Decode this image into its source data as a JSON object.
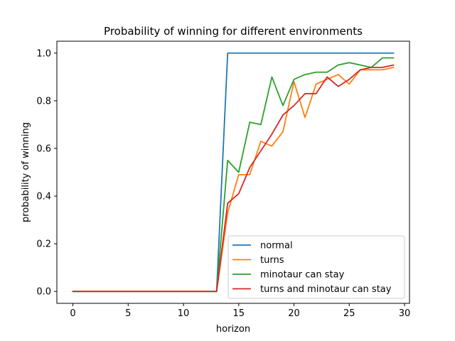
{
  "chart_data": {
    "type": "line",
    "title": "Probability of winning for different environments",
    "xlabel": "horizon",
    "ylabel": "probability of winning",
    "xlim": [
      -1.45,
      30.45
    ],
    "ylim": [
      -0.05,
      1.05
    ],
    "xticks": [
      0,
      5,
      10,
      15,
      20,
      25,
      30
    ],
    "xtick_labels": [
      "0",
      "5",
      "10",
      "15",
      "20",
      "25",
      "30"
    ],
    "yticks": [
      0.0,
      0.2,
      0.4,
      0.6,
      0.8,
      1.0
    ],
    "ytick_labels": [
      "0.0",
      "0.2",
      "0.4",
      "0.6",
      "0.8",
      "1.0"
    ],
    "grid": false,
    "legend_position": "lower-right",
    "x": [
      0,
      1,
      2,
      3,
      4,
      5,
      6,
      7,
      8,
      9,
      10,
      11,
      12,
      13,
      14,
      15,
      16,
      17,
      18,
      19,
      20,
      21,
      22,
      23,
      24,
      25,
      26,
      27,
      28,
      29
    ],
    "series": [
      {
        "name": "normal",
        "color": "#1f77b4",
        "values": [
          0,
          0,
          0,
          0,
          0,
          0,
          0,
          0,
          0,
          0,
          0,
          0,
          0,
          0,
          1.0,
          1.0,
          1.0,
          1.0,
          1.0,
          1.0,
          1.0,
          1.0,
          1.0,
          1.0,
          1.0,
          1.0,
          1.0,
          1.0,
          1.0,
          1.0
        ]
      },
      {
        "name": "turns",
        "color": "#ff7f0e",
        "values": [
          0,
          0,
          0,
          0,
          0,
          0,
          0,
          0,
          0,
          0,
          0,
          0,
          0,
          0,
          0.33,
          0.49,
          0.49,
          0.63,
          0.61,
          0.67,
          0.88,
          0.73,
          0.87,
          0.89,
          0.91,
          0.87,
          0.93,
          0.93,
          0.93,
          0.94
        ]
      },
      {
        "name": "minotaur can stay",
        "color": "#2ca02c",
        "values": [
          0,
          0,
          0,
          0,
          0,
          0,
          0,
          0,
          0,
          0,
          0,
          0,
          0,
          0,
          0.55,
          0.5,
          0.71,
          0.7,
          0.9,
          0.78,
          0.89,
          0.91,
          0.92,
          0.92,
          0.95,
          0.96,
          0.95,
          0.94,
          0.98,
          0.98
        ]
      },
      {
        "name": "turns and minotaur can stay",
        "color": "#d62728",
        "values": [
          0,
          0,
          0,
          0,
          0,
          0,
          0,
          0,
          0,
          0,
          0,
          0,
          0,
          0,
          0.37,
          0.41,
          0.52,
          0.59,
          0.66,
          0.74,
          0.78,
          0.83,
          0.83,
          0.9,
          0.86,
          0.89,
          0.93,
          0.94,
          0.94,
          0.95
        ]
      }
    ]
  }
}
